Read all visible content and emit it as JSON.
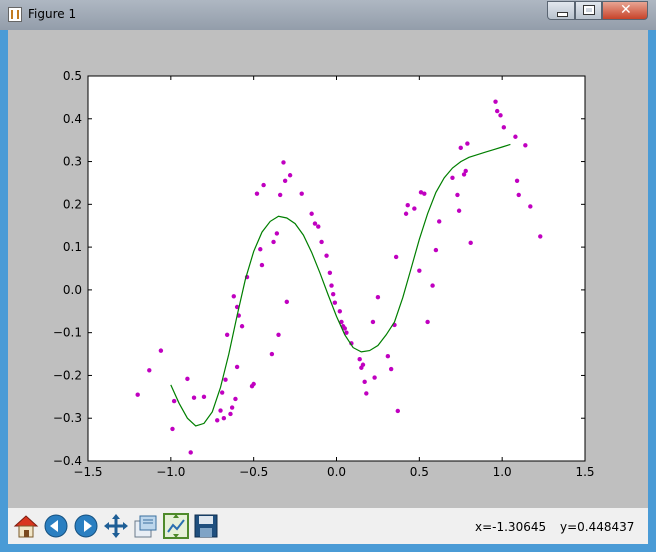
{
  "window": {
    "title": "Figure 1",
    "controls": {
      "minimize": "minimize",
      "maximize": "maximize",
      "close": "✕"
    }
  },
  "toolbar": {
    "tools": [
      {
        "name": "home-icon"
      },
      {
        "name": "back-icon"
      },
      {
        "name": "forward-icon"
      },
      {
        "name": "pan-icon"
      },
      {
        "name": "zoom-icon"
      },
      {
        "name": "configure-subplots-icon"
      },
      {
        "name": "save-icon"
      }
    ],
    "x_readout": "x=-1.30645",
    "y_readout": "y=0.448437"
  },
  "colors": {
    "points": "#c000c0",
    "curve": "#007f00",
    "figure_bg": "#bfbfbf",
    "axes_bg": "#ffffff"
  },
  "chart_data": {
    "type": "scatter",
    "title": "",
    "xlabel": "",
    "ylabel": "",
    "xlim": [
      -1.5,
      1.5
    ],
    "ylim": [
      -0.4,
      0.5
    ],
    "grid": false,
    "xticks": [
      "−1.5",
      "−1.0",
      "−0.5",
      "0.0",
      "0.5",
      "1.0",
      "1.5"
    ],
    "xtick_values": [
      -1.5,
      -1.0,
      -0.5,
      0.0,
      0.5,
      1.0,
      1.5
    ],
    "yticks": [
      "−0.4",
      "−0.3",
      "−0.2",
      "−0.1",
      "0.0",
      "0.1",
      "0.2",
      "0.3",
      "0.4",
      "0.5"
    ],
    "ytick_values": [
      -0.4,
      -0.3,
      -0.2,
      -0.1,
      0.0,
      0.1,
      0.2,
      0.3,
      0.4,
      0.5
    ],
    "series": [
      {
        "kind": "scatter",
        "color": "#c000c0",
        "points": [
          [
            -1.2,
            -0.245
          ],
          [
            -1.13,
            -0.188
          ],
          [
            -1.06,
            -0.142
          ],
          [
            -0.99,
            -0.325
          ],
          [
            -0.98,
            -0.26
          ],
          [
            -0.9,
            -0.208
          ],
          [
            -0.88,
            -0.38
          ],
          [
            -0.86,
            -0.252
          ],
          [
            -0.8,
            -0.25
          ],
          [
            -0.72,
            -0.305
          ],
          [
            -0.7,
            -0.282
          ],
          [
            -0.69,
            -0.24
          ],
          [
            -0.68,
            -0.3
          ],
          [
            -0.67,
            -0.21
          ],
          [
            -0.66,
            -0.105
          ],
          [
            -0.64,
            -0.29
          ],
          [
            -0.63,
            -0.275
          ],
          [
            -0.62,
            -0.015
          ],
          [
            -0.61,
            -0.255
          ],
          [
            -0.6,
            -0.18
          ],
          [
            -0.6,
            -0.04
          ],
          [
            -0.59,
            -0.06
          ],
          [
            -0.57,
            -0.085
          ],
          [
            -0.54,
            0.03
          ],
          [
            -0.51,
            -0.225
          ],
          [
            -0.5,
            -0.22
          ],
          [
            -0.48,
            0.225
          ],
          [
            -0.46,
            0.095
          ],
          [
            -0.45,
            0.058
          ],
          [
            -0.44,
            0.245
          ],
          [
            -0.39,
            -0.15
          ],
          [
            -0.38,
            0.112
          ],
          [
            -0.36,
            0.132
          ],
          [
            -0.35,
            -0.105
          ],
          [
            -0.34,
            0.222
          ],
          [
            -0.32,
            0.298
          ],
          [
            -0.31,
            0.255
          ],
          [
            -0.3,
            -0.028
          ],
          [
            -0.28,
            0.268
          ],
          [
            -0.21,
            0.225
          ],
          [
            -0.15,
            0.178
          ],
          [
            -0.13,
            0.155
          ],
          [
            -0.11,
            0.148
          ],
          [
            -0.09,
            0.112
          ],
          [
            -0.06,
            0.08
          ],
          [
            -0.04,
            0.04
          ],
          [
            -0.03,
            0.01
          ],
          [
            -0.02,
            -0.01
          ],
          [
            -0.01,
            -0.03
          ],
          [
            0.02,
            -0.05
          ],
          [
            0.03,
            -0.075
          ],
          [
            0.04,
            -0.085
          ],
          [
            0.05,
            -0.09
          ],
          [
            0.06,
            -0.1
          ],
          [
            0.09,
            -0.125
          ],
          [
            0.14,
            -0.162
          ],
          [
            0.15,
            -0.182
          ],
          [
            0.16,
            -0.175
          ],
          [
            0.17,
            -0.215
          ],
          [
            0.18,
            -0.242
          ],
          [
            0.22,
            -0.075
          ],
          [
            0.23,
            -0.205
          ],
          [
            0.25,
            -0.017
          ],
          [
            0.31,
            -0.155
          ],
          [
            0.33,
            -0.185
          ],
          [
            0.35,
            -0.082
          ],
          [
            0.36,
            0.077
          ],
          [
            0.37,
            -0.283
          ],
          [
            0.42,
            0.178
          ],
          [
            0.43,
            0.198
          ],
          [
            0.47,
            0.19
          ],
          [
            0.5,
            0.045
          ],
          [
            0.51,
            0.228
          ],
          [
            0.53,
            0.225
          ],
          [
            0.55,
            -0.075
          ],
          [
            0.58,
            0.01
          ],
          [
            0.6,
            0.093
          ],
          [
            0.62,
            0.16
          ],
          [
            0.7,
            0.262
          ],
          [
            0.73,
            0.222
          ],
          [
            0.74,
            0.185
          ],
          [
            0.75,
            0.332
          ],
          [
            0.77,
            0.27
          ],
          [
            0.78,
            0.278
          ],
          [
            0.79,
            0.342
          ],
          [
            0.81,
            0.11
          ],
          [
            0.96,
            0.44
          ],
          [
            0.97,
            0.418
          ],
          [
            0.99,
            0.408
          ],
          [
            1.01,
            0.38
          ],
          [
            1.08,
            0.358
          ],
          [
            1.09,
            0.255
          ],
          [
            1.1,
            0.222
          ],
          [
            1.14,
            0.338
          ],
          [
            1.17,
            0.195
          ],
          [
            1.23,
            0.125
          ]
        ]
      },
      {
        "kind": "line",
        "color": "#007f00",
        "points": [
          [
            -1.0,
            -0.222
          ],
          [
            -0.95,
            -0.265
          ],
          [
            -0.9,
            -0.3
          ],
          [
            -0.85,
            -0.318
          ],
          [
            -0.8,
            -0.312
          ],
          [
            -0.75,
            -0.285
          ],
          [
            -0.7,
            -0.228
          ],
          [
            -0.65,
            -0.15
          ],
          [
            -0.6,
            -0.06
          ],
          [
            -0.55,
            0.025
          ],
          [
            -0.5,
            0.09
          ],
          [
            -0.45,
            0.135
          ],
          [
            -0.4,
            0.16
          ],
          [
            -0.35,
            0.172
          ],
          [
            -0.3,
            0.168
          ],
          [
            -0.25,
            0.155
          ],
          [
            -0.2,
            0.128
          ],
          [
            -0.15,
            0.088
          ],
          [
            -0.1,
            0.04
          ],
          [
            -0.05,
            -0.012
          ],
          [
            0.0,
            -0.062
          ],
          [
            0.05,
            -0.105
          ],
          [
            0.1,
            -0.135
          ],
          [
            0.15,
            -0.145
          ],
          [
            0.2,
            -0.142
          ],
          [
            0.25,
            -0.13
          ],
          [
            0.3,
            -0.105
          ],
          [
            0.35,
            -0.075
          ],
          [
            0.4,
            -0.018
          ],
          [
            0.45,
            0.05
          ],
          [
            0.5,
            0.118
          ],
          [
            0.55,
            0.178
          ],
          [
            0.6,
            0.228
          ],
          [
            0.65,
            0.262
          ],
          [
            0.7,
            0.285
          ],
          [
            0.75,
            0.3
          ],
          [
            0.8,
            0.31
          ],
          [
            0.85,
            0.316
          ],
          [
            0.9,
            0.322
          ],
          [
            0.95,
            0.328
          ],
          [
            1.0,
            0.334
          ],
          [
            1.05,
            0.34
          ]
        ]
      }
    ]
  }
}
